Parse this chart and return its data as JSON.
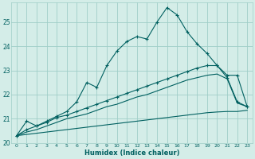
{
  "xlabel": "Humidex (Indice chaleur)",
  "bg_color": "#d4ede8",
  "grid_color": "#a0cec8",
  "line_color": "#006060",
  "xlim": [
    -0.5,
    23.5
  ],
  "ylim": [
    20.0,
    25.8
  ],
  "yticks": [
    20,
    21,
    22,
    23,
    24,
    25
  ],
  "xticks": [
    0,
    1,
    2,
    3,
    4,
    5,
    6,
    7,
    8,
    9,
    10,
    11,
    12,
    13,
    14,
    15,
    16,
    17,
    18,
    19,
    20,
    21,
    22,
    23
  ],
  "s1_x": [
    0,
    1,
    2,
    3,
    4,
    5,
    6,
    7,
    8,
    9,
    10,
    11,
    12,
    13,
    14,
    15,
    16,
    17,
    18,
    19,
    20,
    21,
    22,
    23
  ],
  "s1_y": [
    20.3,
    20.9,
    20.7,
    20.9,
    21.1,
    21.3,
    21.7,
    22.5,
    22.3,
    23.2,
    23.8,
    24.2,
    24.4,
    24.3,
    25.0,
    25.6,
    25.3,
    24.6,
    24.1,
    23.7,
    23.2,
    22.8,
    22.8,
    21.5
  ],
  "s2_x": [
    0,
    1,
    2,
    3,
    4,
    5,
    6,
    7,
    8,
    9,
    10,
    11,
    12,
    13,
    14,
    15,
    16,
    17,
    18,
    19,
    20,
    21,
    22,
    23
  ],
  "s2_y": [
    20.3,
    20.55,
    20.7,
    20.85,
    21.05,
    21.15,
    21.3,
    21.45,
    21.6,
    21.75,
    21.9,
    22.05,
    22.2,
    22.35,
    22.5,
    22.65,
    22.8,
    22.95,
    23.1,
    23.2,
    23.2,
    22.7,
    21.7,
    21.5
  ],
  "s3_x": [
    0,
    1,
    2,
    3,
    4,
    5,
    6,
    7,
    8,
    9,
    10,
    11,
    12,
    13,
    14,
    15,
    16,
    17,
    18,
    19,
    20,
    21,
    22,
    23
  ],
  "s3_y": [
    20.3,
    20.45,
    20.55,
    20.7,
    20.85,
    21.0,
    21.1,
    21.2,
    21.35,
    21.5,
    21.6,
    21.75,
    21.9,
    22.0,
    22.15,
    22.3,
    22.45,
    22.6,
    22.7,
    22.8,
    22.85,
    22.65,
    21.65,
    21.5
  ],
  "s4_x": [
    0,
    1,
    2,
    3,
    4,
    5,
    6,
    7,
    8,
    9,
    10,
    11,
    12,
    13,
    14,
    15,
    16,
    17,
    18,
    19,
    20,
    21,
    22,
    23
  ],
  "s4_y": [
    20.3,
    20.35,
    20.4,
    20.45,
    20.5,
    20.55,
    20.6,
    20.65,
    20.7,
    20.75,
    20.8,
    20.85,
    20.9,
    20.95,
    21.0,
    21.05,
    21.1,
    21.15,
    21.2,
    21.25,
    21.28,
    21.3,
    21.3,
    21.35
  ]
}
